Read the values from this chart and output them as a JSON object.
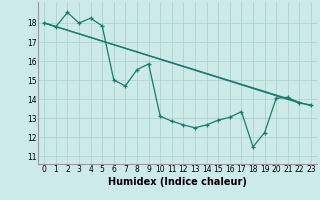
{
  "bg_color": "#cceae8",
  "grid_color": "#aed4d0",
  "line_color": "#1a7a6e",
  "xlabel": "Humidex (Indice chaleur)",
  "xlabel_fontsize": 7,
  "tick_fontsize": 5.5,
  "xlim": [
    -0.5,
    23.5
  ],
  "ylim": [
    10.6,
    19.1
  ],
  "yticks": [
    11,
    12,
    13,
    14,
    15,
    16,
    17,
    18
  ],
  "xticks": [
    0,
    1,
    2,
    3,
    4,
    5,
    6,
    7,
    8,
    9,
    10,
    11,
    12,
    13,
    14,
    15,
    16,
    17,
    18,
    19,
    20,
    21,
    22,
    23
  ],
  "series": [
    [
      0,
      18.0
    ],
    [
      1,
      17.8
    ],
    [
      2,
      18.55
    ],
    [
      3,
      18.0
    ],
    [
      4,
      18.25
    ],
    [
      5,
      17.85
    ],
    [
      6,
      15.0
    ],
    [
      7,
      14.7
    ],
    [
      8,
      15.55
    ],
    [
      9,
      15.85
    ],
    [
      10,
      13.1
    ],
    [
      11,
      12.85
    ],
    [
      12,
      12.65
    ],
    [
      13,
      12.5
    ],
    [
      14,
      12.65
    ],
    [
      15,
      12.9
    ],
    [
      16,
      13.05
    ],
    [
      17,
      13.35
    ],
    [
      18,
      11.5
    ],
    [
      19,
      12.25
    ],
    [
      20,
      14.05
    ],
    [
      21,
      14.1
    ],
    [
      22,
      13.8
    ],
    [
      23,
      13.7
    ]
  ],
  "line2": [
    [
      0,
      18.0
    ],
    [
      22,
      13.8
    ]
  ],
  "line3": [
    [
      0,
      18.0
    ],
    [
      23,
      13.65
    ]
  ]
}
